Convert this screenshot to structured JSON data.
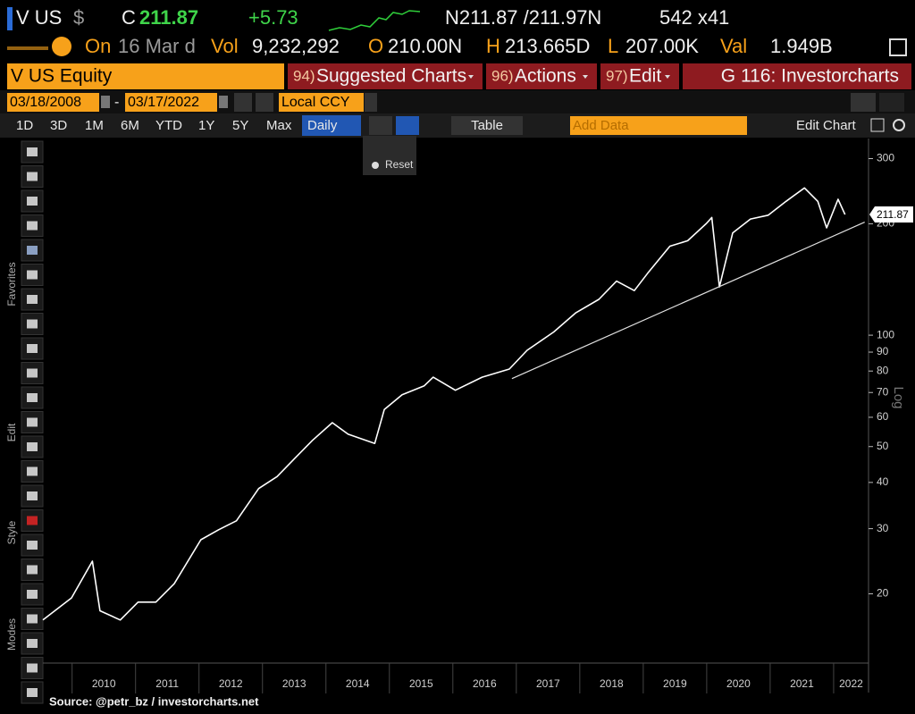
{
  "quote": {
    "symbol": "V US",
    "currency": "$",
    "last_label": "C",
    "last": "211.87",
    "change": "+5.73",
    "bid_ask": "N211.87 /211.97N",
    "size": "542 x41"
  },
  "stats": {
    "on": "On",
    "date": "16 Mar d",
    "vol_label": "Vol",
    "vol": "9,232,292",
    "open_label": "O",
    "open": "210.00N",
    "high_label": "H",
    "high": "213.665D",
    "low_label": "L",
    "low": "207.00K",
    "val_label": "Val",
    "val": "1.949B"
  },
  "menu": {
    "security": "V US Equity",
    "items": [
      {
        "num": "94)",
        "label": "Suggested Charts"
      },
      {
        "num": "96)",
        "label": "Actions"
      },
      {
        "num": "97)",
        "label": "Edit"
      }
    ],
    "function": "G 116: Investorcharts"
  },
  "range": {
    "start": "03/18/2008",
    "separator": "-",
    "end": "03/17/2022",
    "currency": "Local CCY"
  },
  "toolbar": {
    "periods": [
      "1D",
      "3D",
      "1M",
      "6M",
      "YTD",
      "1Y",
      "5Y",
      "Max"
    ],
    "frequency": "Daily",
    "table": "Table",
    "add_data": "Add Data",
    "edit_chart": "Edit Chart"
  },
  "popup": {
    "reset": "Reset"
  },
  "side_labels": [
    "Favorites",
    "Edit",
    "Style",
    "Modes"
  ],
  "source": "Source: @petr_bz / investorcharts.net",
  "chart_data": {
    "type": "line",
    "color": "#ffffff",
    "log_scale": true,
    "grid": false,
    "axis_label": "Log",
    "x": [
      2009.54,
      2009.99,
      2010.32,
      2010.44,
      2010.76,
      2011.04,
      2011.32,
      2011.61,
      2012.03,
      2012.31,
      2012.59,
      2012.94,
      2013.23,
      2013.51,
      2013.79,
      2014.1,
      2014.35,
      2014.77,
      2014.92,
      2015.2,
      2015.55,
      2015.69,
      2016.04,
      2016.46,
      2016.89,
      2017.17,
      2017.59,
      2017.94,
      2018.3,
      2018.58,
      2018.86,
      2019.07,
      2019.42,
      2019.7,
      2019.99,
      2020.08,
      2020.2,
      2020.41,
      2020.69,
      2020.97,
      2021.25,
      2021.54,
      2021.75,
      2021.89,
      2022.07,
      2022.18
    ],
    "values": [
      17,
      19.5,
      24.5,
      18,
      17,
      19,
      19,
      21.3,
      28,
      29.8,
      31.5,
      38.5,
      41.5,
      46.5,
      52,
      58,
      54,
      51,
      63,
      69,
      73,
      77,
      71,
      77,
      81,
      91,
      102,
      115,
      125,
      140,
      132,
      147,
      174,
      180,
      200,
      208,
      135,
      189,
      206,
      211,
      230,
      250,
      230,
      195,
      233,
      211.87
    ],
    "trendline": {
      "x": [
        2016.93,
        2022.49
      ],
      "values": [
        76.3,
        202
      ]
    },
    "last_label": 211.87,
    "xlim": [
      2009.54,
      2022.55
    ],
    "ylim": [
      13,
      340
    ],
    "xticks": [
      2010,
      2011,
      2012,
      2013,
      2014,
      2015,
      2016,
      2017,
      2018,
      2019,
      2020,
      2021,
      2022
    ],
    "yticks": [
      20,
      30,
      40,
      50,
      60,
      70,
      80,
      90,
      100,
      200,
      300
    ]
  }
}
